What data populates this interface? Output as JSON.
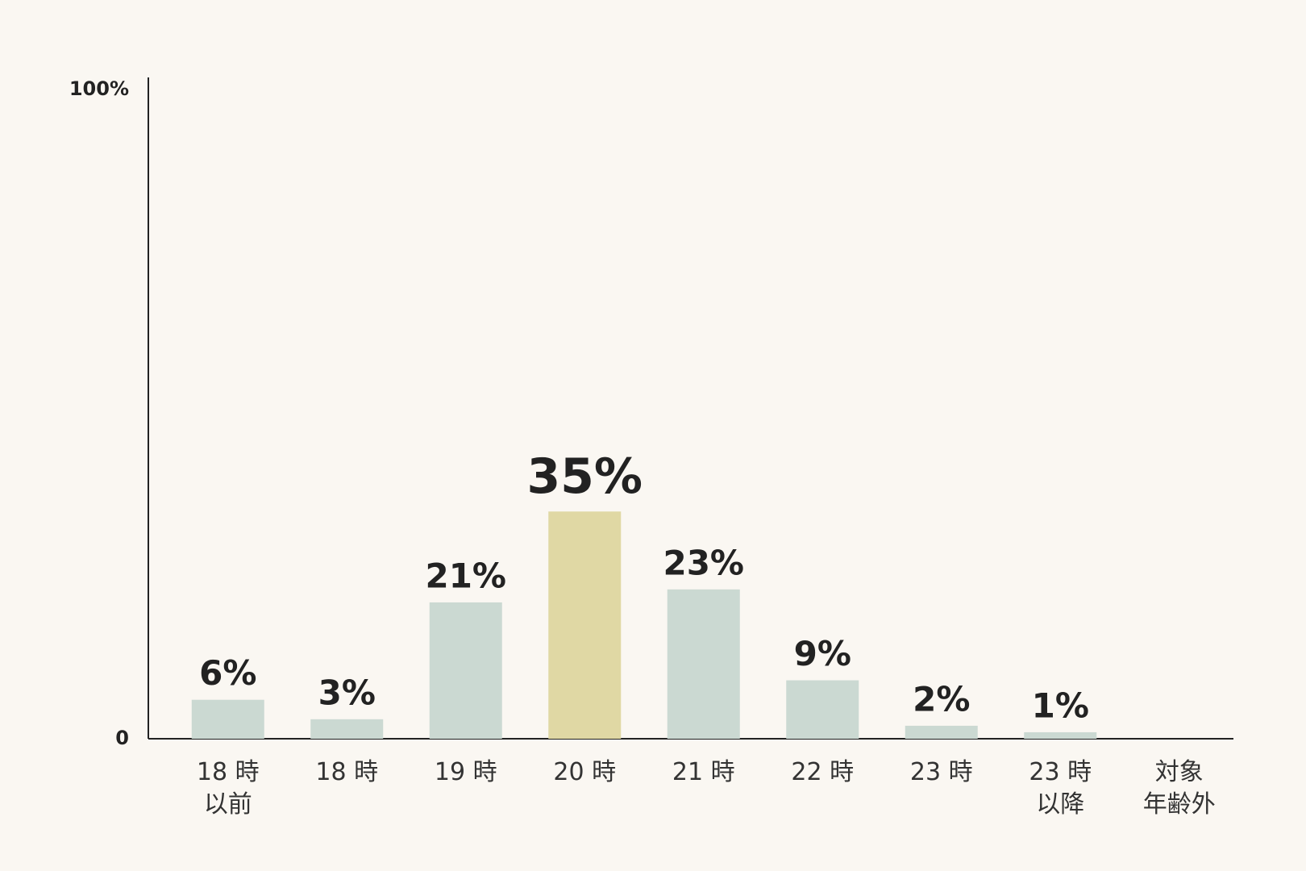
{
  "chart_data": {
    "type": "bar",
    "categories": [
      "18 時\n以前",
      "18 時",
      "19 時",
      "20 時",
      "21 時",
      "22 時",
      "23 時",
      "23 時\n以降",
      "対象\n年齢外"
    ],
    "values": [
      6,
      3,
      21,
      35,
      23,
      9,
      2,
      1,
      null
    ],
    "value_labels": [
      "6%",
      "3%",
      "21%",
      "35%",
      "23%",
      "9%",
      "2%",
      "1%",
      null
    ],
    "colors": [
      "#cbd9d2",
      "#cbd9d2",
      "#cbd9d2",
      "#e0d8a4",
      "#cbd9d2",
      "#cbd9d2",
      "#cbd9d2",
      "#cbd9d2",
      "#cbd9d2"
    ],
    "ylim": [
      0,
      100
    ],
    "yticks": [
      0,
      {
        "value": 100,
        "label": "100%"
      }
    ],
    "grid": false
  }
}
